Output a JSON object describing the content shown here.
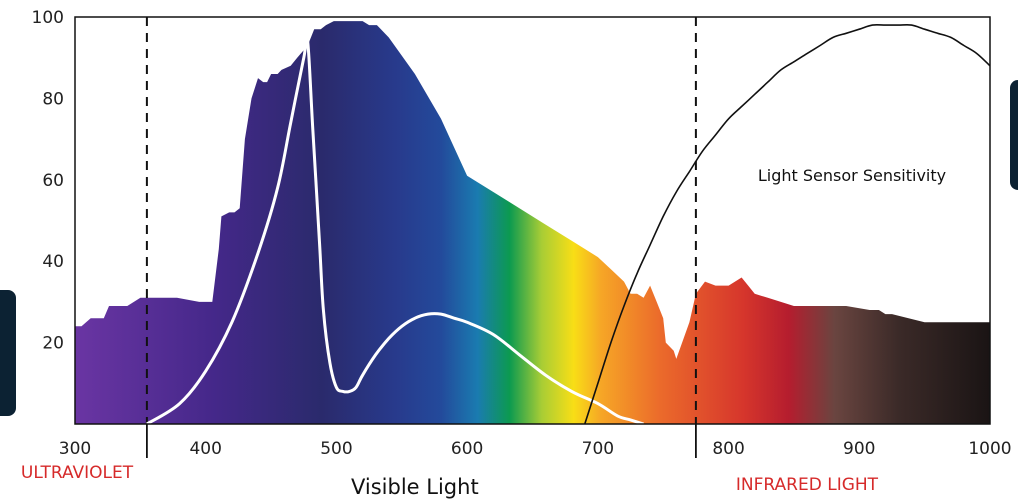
{
  "chart_data": {
    "type": "area",
    "xlim": [
      300,
      1000
    ],
    "ylim": [
      0,
      100
    ],
    "x_ticks": [
      "300",
      "400",
      "500",
      "600",
      "700",
      "800",
      "900",
      "1000"
    ],
    "y_ticks": [
      "100",
      "80",
      "60",
      "40",
      "20"
    ],
    "grid": false,
    "region_labels": {
      "ultraviolet": "ULTRAVIOLET",
      "visible": "Visible Light",
      "infrared": "INFRARED LIGHT"
    },
    "boundaries": [
      355,
      775
    ],
    "annotation": "Light Sensor Sensitivity",
    "series": [
      {
        "role": "light spectrum (filled area, rainbow gradient)",
        "x": [
          300,
          305,
          312,
          322,
          326,
          340,
          350,
          360,
          378,
          395,
          400,
          405,
          410,
          412,
          418,
          422,
          426,
          430,
          435,
          440,
          444,
          447,
          450,
          455,
          458,
          465,
          470,
          478,
          483,
          488,
          492,
          498,
          500,
          510,
          520,
          525,
          531,
          540,
          560,
          580,
          600,
          620,
          640,
          660,
          680,
          700,
          710,
          720,
          725,
          730,
          735,
          740,
          745,
          750,
          752,
          758,
          760,
          770,
          775,
          782,
          790,
          800,
          810,
          815,
          820,
          830,
          850,
          870,
          890,
          908,
          915,
          920,
          925,
          950,
          970,
          1000
        ],
        "values": [
          24,
          24,
          26,
          26,
          29,
          29,
          31,
          31,
          31,
          30,
          30,
          30,
          43,
          51,
          52,
          52,
          53,
          70,
          80,
          85,
          84,
          84,
          86,
          86,
          87,
          88,
          90,
          93,
          97,
          97,
          98,
          99,
          99,
          99,
          99,
          98,
          98,
          95,
          86,
          75,
          61,
          57,
          53,
          49,
          45,
          41,
          38,
          35,
          32,
          32,
          31,
          34,
          30,
          26,
          20,
          18,
          16,
          25,
          32,
          35,
          34,
          34,
          36,
          34,
          32,
          31,
          29,
          29,
          29,
          28,
          28,
          27,
          27,
          25,
          25,
          25
        ]
      },
      {
        "role": "white response curve",
        "x": [
          355,
          380,
          400,
          420,
          440,
          455,
          465,
          475,
          478,
          482,
          487,
          490,
          495,
          500,
          505,
          510,
          515,
          520,
          530,
          540,
          550,
          560,
          570,
          580,
          590,
          600,
          620,
          640,
          660,
          680,
          700,
          715,
          725,
          735
        ],
        "values": [
          0,
          5,
          13,
          25,
          42,
          58,
          74,
          90,
          94,
          72,
          45,
          28,
          15,
          9,
          8,
          8,
          9,
          12,
          17,
          21,
          24,
          26,
          27,
          27,
          26,
          25,
          22,
          17,
          12,
          8,
          5,
          2,
          1,
          0
        ]
      },
      {
        "name": "Light Sensor Sensitivity",
        "role": "black sensitivity curve",
        "x": [
          690,
          700,
          710,
          720,
          730,
          740,
          750,
          760,
          770,
          780,
          790,
          800,
          810,
          820,
          830,
          840,
          850,
          860,
          870,
          880,
          890,
          900,
          910,
          920,
          930,
          940,
          950,
          960,
          970,
          980,
          990,
          1000
        ],
        "values": [
          0,
          10,
          20,
          29,
          37,
          44,
          51,
          57,
          62,
          67,
          71,
          75,
          78,
          81,
          84,
          87,
          89,
          91,
          93,
          95,
          96,
          97,
          98,
          98,
          98,
          98,
          97,
          96,
          95,
          93,
          91,
          88
        ]
      }
    ]
  }
}
